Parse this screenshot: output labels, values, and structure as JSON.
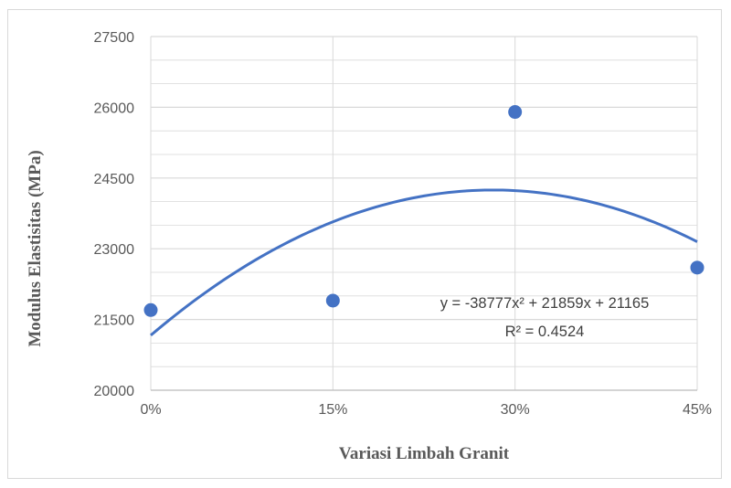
{
  "chart_data": {
    "type": "scatter",
    "xlabel": "Variasi Limbah Granit",
    "ylabel": "Modulus Elastisitas (MPa)",
    "x_ticks": [
      "0%",
      "15%",
      "30%",
      "45%"
    ],
    "y_ticks": [
      "20000",
      "21500",
      "23000",
      "24500",
      "26000",
      "27500"
    ],
    "xlim": [
      0,
      0.45
    ],
    "ylim": [
      20000,
      27500
    ],
    "grid": true,
    "series": [
      {
        "x": [
          0,
          0.15,
          0.3,
          0.45
        ],
        "y": [
          21700,
          21900,
          25900,
          22600
        ]
      }
    ],
    "trendline": {
      "type": "polynomial",
      "coefficients": [
        -38777,
        21859,
        21165
      ],
      "equation": "y = -38777x² + 21859x + 21165",
      "r_squared": "R² = 0.4524"
    },
    "colors": {
      "marker": "#4472c4",
      "trendline": "#4472c4",
      "gridline": "#d9d9d9",
      "axis": "#bfbfbf"
    }
  }
}
